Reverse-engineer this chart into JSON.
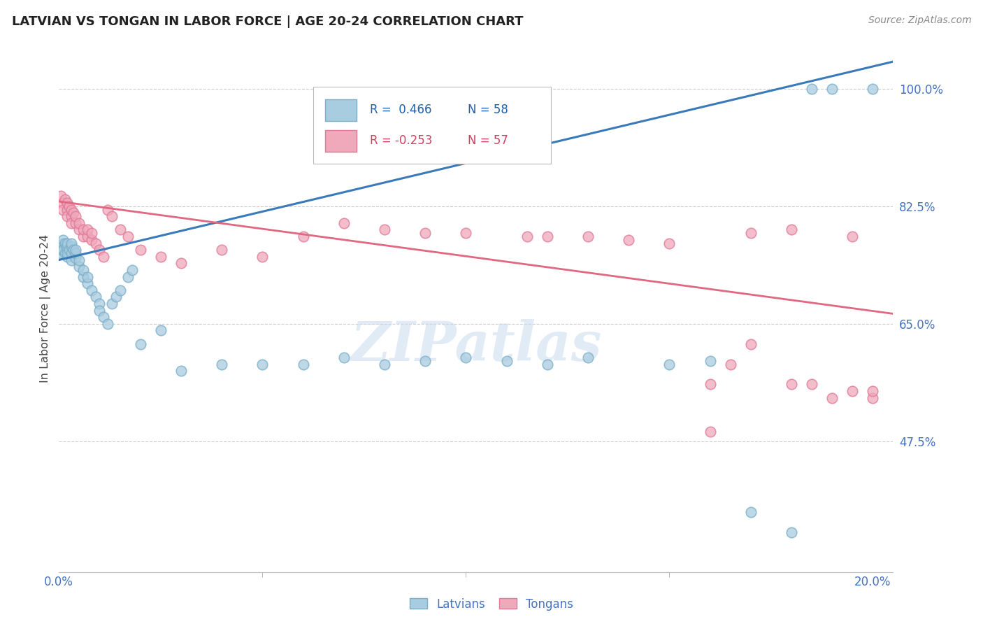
{
  "title": "LATVIAN VS TONGAN IN LABOR FORCE | AGE 20-24 CORRELATION CHART",
  "source": "Source: ZipAtlas.com",
  "ylabel": "In Labor Force | Age 20-24",
  "blue_R_text": "R =  0.466",
  "blue_N_text": "N = 58",
  "pink_R_text": "R = -0.253",
  "pink_N_text": "N = 57",
  "blue_scatter_color": "#a8cce0",
  "blue_scatter_edge": "#7aaec8",
  "pink_scatter_color": "#f0a8bb",
  "pink_scatter_edge": "#e07898",
  "blue_line_color": "#3a7ab8",
  "pink_line_color": "#e06880",
  "blue_text_color": "#2060a8",
  "pink_text_color": "#d04060",
  "tick_color": "#4472C4",
  "watermark": "ZIPatlas",
  "xlim": [
    0.0,
    0.205
  ],
  "ylim": [
    0.28,
    1.065
  ],
  "ytick_vals": [
    0.475,
    0.65,
    0.825,
    1.0
  ],
  "ytick_labels": [
    "47.5%",
    "65.0%",
    "82.5%",
    "100.0%"
  ],
  "xtick_vals": [
    0.0,
    0.2
  ],
  "xtick_labels": [
    "0.0%",
    "20.0%"
  ],
  "bottom_latvians": "Latvians",
  "bottom_tongans": "Tongans",
  "blue_line_x": [
    0.0,
    0.205
  ],
  "blue_line_y": [
    0.745,
    1.04
  ],
  "pink_line_x": [
    0.0,
    0.205
  ],
  "pink_line_y": [
    0.832,
    0.665
  ],
  "lat_x": [
    0.0005,
    0.0007,
    0.001,
    0.001,
    0.001,
    0.0015,
    0.0015,
    0.0018,
    0.002,
    0.002,
    0.002,
    0.002,
    0.0025,
    0.003,
    0.003,
    0.003,
    0.003,
    0.0035,
    0.004,
    0.004,
    0.004,
    0.005,
    0.005,
    0.006,
    0.006,
    0.007,
    0.007,
    0.008,
    0.009,
    0.01,
    0.01,
    0.011,
    0.012,
    0.013,
    0.014,
    0.015,
    0.017,
    0.018,
    0.02,
    0.025,
    0.03,
    0.04,
    0.05,
    0.06,
    0.07,
    0.08,
    0.09,
    0.1,
    0.11,
    0.12,
    0.13,
    0.15,
    0.16,
    0.17,
    0.18,
    0.185,
    0.19,
    0.2
  ],
  "lat_y": [
    0.755,
    0.76,
    0.77,
    0.775,
    0.76,
    0.77,
    0.755,
    0.765,
    0.76,
    0.77,
    0.75,
    0.755,
    0.76,
    0.745,
    0.755,
    0.765,
    0.77,
    0.76,
    0.748,
    0.755,
    0.76,
    0.735,
    0.745,
    0.72,
    0.73,
    0.71,
    0.72,
    0.7,
    0.69,
    0.68,
    0.67,
    0.66,
    0.65,
    0.68,
    0.69,
    0.7,
    0.72,
    0.73,
    0.62,
    0.64,
    0.58,
    0.59,
    0.59,
    0.59,
    0.6,
    0.59,
    0.595,
    0.6,
    0.595,
    0.59,
    0.6,
    0.59,
    0.595,
    0.37,
    0.34,
    1.0,
    1.0,
    1.0
  ],
  "ton_x": [
    0.0005,
    0.001,
    0.001,
    0.0015,
    0.002,
    0.002,
    0.002,
    0.0025,
    0.003,
    0.003,
    0.003,
    0.0035,
    0.004,
    0.004,
    0.005,
    0.005,
    0.006,
    0.006,
    0.007,
    0.007,
    0.008,
    0.008,
    0.009,
    0.01,
    0.011,
    0.012,
    0.013,
    0.015,
    0.017,
    0.02,
    0.025,
    0.03,
    0.04,
    0.05,
    0.06,
    0.07,
    0.08,
    0.09,
    0.1,
    0.115,
    0.12,
    0.13,
    0.14,
    0.15,
    0.16,
    0.165,
    0.17,
    0.18,
    0.185,
    0.19,
    0.195,
    0.2,
    0.2,
    0.195,
    0.18,
    0.17,
    0.16
  ],
  "ton_y": [
    0.84,
    0.83,
    0.82,
    0.835,
    0.82,
    0.83,
    0.81,
    0.825,
    0.81,
    0.82,
    0.8,
    0.815,
    0.8,
    0.81,
    0.79,
    0.8,
    0.78,
    0.79,
    0.78,
    0.79,
    0.775,
    0.785,
    0.77,
    0.76,
    0.75,
    0.82,
    0.81,
    0.79,
    0.78,
    0.76,
    0.75,
    0.74,
    0.76,
    0.75,
    0.78,
    0.8,
    0.79,
    0.785,
    0.785,
    0.78,
    0.78,
    0.78,
    0.775,
    0.77,
    0.56,
    0.59,
    0.62,
    0.56,
    0.56,
    0.54,
    0.55,
    0.54,
    0.55,
    0.78,
    0.79,
    0.785,
    0.49
  ]
}
